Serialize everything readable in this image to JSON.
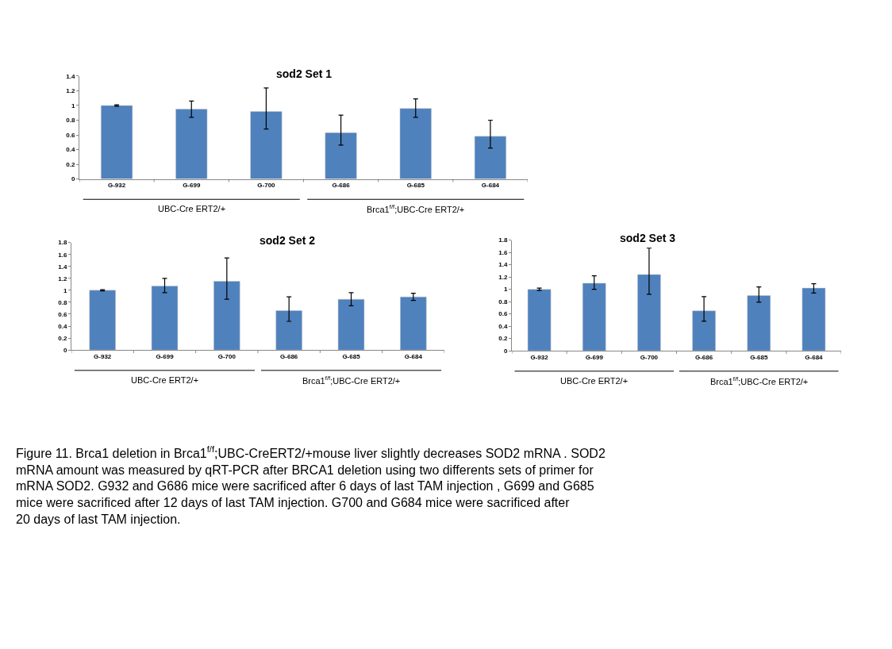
{
  "chart_data": [
    {
      "type": "bar",
      "title": "sod2 Set 1",
      "categories": [
        "G-932",
        "G-699",
        "G-700",
        "G-686",
        "G-685",
        "G-684"
      ],
      "values": [
        1.0,
        0.95,
        0.92,
        0.63,
        0.96,
        0.58
      ],
      "color": "#4f81bd",
      "errors": [
        [
          0.99,
          1.01
        ],
        [
          0.84,
          1.06
        ],
        [
          0.68,
          1.24
        ],
        [
          0.46,
          0.87
        ],
        [
          0.84,
          1.09
        ],
        [
          0.42,
          0.8
        ]
      ],
      "ylim": [
        0,
        1.4
      ],
      "yticks": [
        0,
        0.2,
        0.4,
        0.6,
        0.8,
        1,
        1.2,
        1.4
      ],
      "annotations": [
        "UBC-Cre ERT2/+",
        "Brca1$^{f/f}$;UBC-Cre ERT2/+"
      ]
    },
    {
      "type": "bar",
      "title": "sod2 Set 2",
      "categories": [
        "G-932",
        "G-699",
        "G-700",
        "G-686",
        "G-685",
        "G-684"
      ],
      "values": [
        1.0,
        1.07,
        1.15,
        0.66,
        0.85,
        0.89
      ],
      "color": "#4f81bd",
      "errors": [
        [
          0.99,
          1.01
        ],
        [
          0.96,
          1.2
        ],
        [
          0.85,
          1.54
        ],
        [
          0.48,
          0.89
        ],
        [
          0.74,
          0.96
        ],
        [
          0.83,
          0.95
        ]
      ],
      "ylim": [
        0,
        1.8
      ],
      "yticks": [
        0,
        0.2,
        0.4,
        0.6,
        0.8,
        1,
        1.2,
        1.4,
        1.6,
        1.8
      ],
      "annotations": [
        "UBC-Cre ERT2/+",
        "Brca1$^{f/f}$;UBC-Cre ERT2/+"
      ]
    },
    {
      "type": "bar",
      "title": "sod2 Set 3",
      "categories": [
        "G-932",
        "G-699",
        "G-700",
        "G-686",
        "G-685",
        "G-684"
      ],
      "values": [
        1.0,
        1.1,
        1.24,
        0.65,
        0.9,
        1.02
      ],
      "color": "#4f81bd",
      "errors": [
        [
          0.98,
          1.02
        ],
        [
          1.0,
          1.22
        ],
        [
          0.92,
          1.67
        ],
        [
          0.48,
          0.88
        ],
        [
          0.79,
          1.04
        ],
        [
          0.94,
          1.09
        ]
      ],
      "ylim": [
        0,
        1.8
      ],
      "yticks": [
        0,
        0.2,
        0.4,
        0.6,
        0.8,
        1,
        1.2,
        1.4,
        1.6,
        1.8
      ],
      "annotations": [
        "UBC-Cre ERT2/+",
        "Brca1$^{f/f}$;UBC-Cre ERT2/+",
        "Figure 11. Brca1 deletion in Brca1$^{f/f}$;UBC-CreERT2/+mouse liver slightly decreases SOD2 mRNA . SOD2 mRNA amount was measured by qRT-PCR after BRCA1 deletion using two differents sets of primer for mRNA SOD2. G932 and G686 mice were sacrificed after 6 days of last TAM injection , G699 and G685 mice were sacrificed after 12 days of last TAM injection. G700 and G684 mice were sacrificed after 20 days of last TAM injection."
      ]
    }
  ]
}
